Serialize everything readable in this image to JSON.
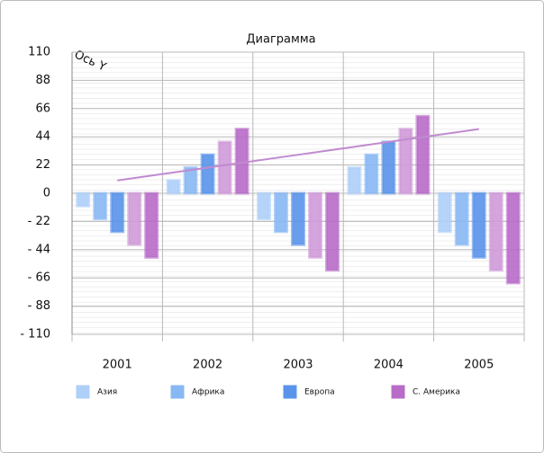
{
  "chart_data": {
    "type": "bar",
    "title": "Диаграмма",
    "y_label": "Ось Y",
    "categories": [
      "2001",
      "2002",
      "2003",
      "2004",
      "2005"
    ],
    "series": [
      {
        "name": "Азия",
        "color": "#aecff8",
        "values": [
          -10,
          10,
          -20,
          20,
          -30
        ]
      },
      {
        "name": "Африка",
        "color": "#88b8f4",
        "values": [
          -20,
          20,
          -30,
          30,
          -40
        ]
      },
      {
        "name": "Европа",
        "color": "#5a94ea",
        "values": [
          -30,
          30,
          -40,
          40,
          -50
        ]
      },
      {
        "color": "#cf9ad8",
        "values": [
          -40,
          40,
          -50,
          50,
          -60
        ]
      },
      {
        "name": "С. Америка",
        "color": "#b86cc8",
        "values": [
          -50,
          50,
          -60,
          60,
          -70
        ]
      }
    ],
    "trend": {
      "color": "#c08ad0",
      "values": [
        10,
        20,
        30,
        40,
        50
      ]
    },
    "ylim": [
      -110,
      110
    ],
    "yticks": [
      110,
      88,
      66,
      44,
      22,
      0,
      {
        "value": -22,
        "label": "- 22"
      },
      {
        "value": -44,
        "label": "- 44"
      },
      {
        "value": -66,
        "label": "- 66"
      },
      {
        "value": -88,
        "label": "- 88"
      },
      {
        "value": -110,
        "label": "- 110"
      }
    ],
    "grid": true
  }
}
